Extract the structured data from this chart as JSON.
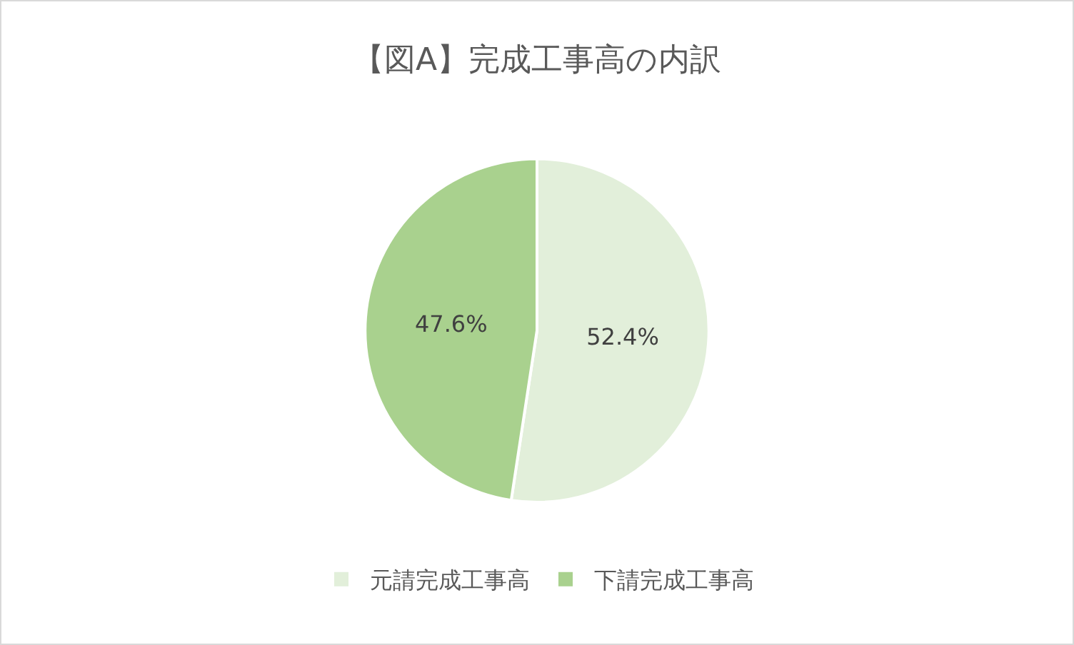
{
  "chart_data": {
    "type": "pie",
    "title": "【図A】完成工事高の内訳",
    "categories": [
      "元請完成工事高",
      "下請完成工事高"
    ],
    "values": [
      52.4,
      47.6
    ],
    "value_labels": [
      "52.4%",
      "47.6%"
    ],
    "colors": [
      "#e2efda",
      "#a9d18e"
    ],
    "legend": "bottom"
  }
}
